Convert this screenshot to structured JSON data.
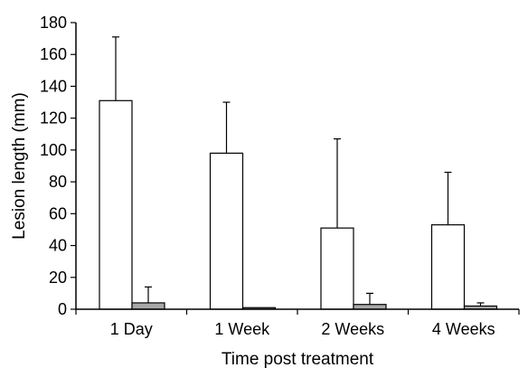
{
  "chart_data": {
    "type": "bar",
    "title": "",
    "xlabel": "Time post treatment",
    "ylabel": "Lesion length (mm)",
    "ylim": [
      0,
      180
    ],
    "yticks": [
      0,
      20,
      40,
      60,
      80,
      100,
      120,
      140,
      160,
      180
    ],
    "grid": false,
    "legend": "none",
    "categories": [
      "1 Day",
      "1 Week",
      "2 Weeks",
      "4 Weeks"
    ],
    "series": [
      {
        "values": [
          131,
          98,
          51,
          53
        ],
        "errors": [
          40,
          32,
          56,
          33
        ],
        "fill": "#ffffff",
        "stroke": "#000000"
      },
      {
        "values": [
          4,
          1,
          3,
          2
        ],
        "errors": [
          10,
          0,
          7,
          2
        ],
        "fill": "#a8a8a8",
        "stroke": "#000000"
      }
    ]
  }
}
